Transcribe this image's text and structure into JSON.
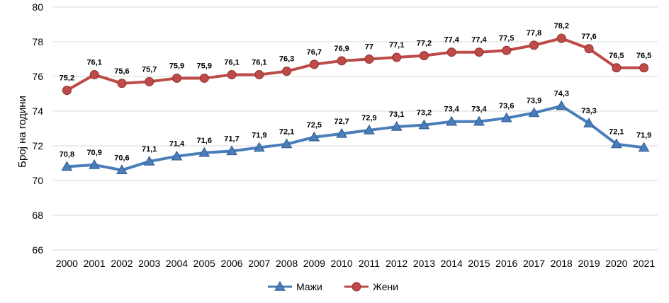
{
  "chart_data": {
    "type": "line",
    "title": "",
    "xlabel": "",
    "ylabel": "Број на години",
    "ylim": [
      66,
      80
    ],
    "yticks": [
      66,
      68,
      70,
      72,
      74,
      76,
      78,
      80
    ],
    "grid": true,
    "legend_position": "bottom",
    "categories": [
      "2000",
      "2001",
      "2002",
      "2003",
      "2004",
      "2005",
      "2006",
      "2007",
      "2008",
      "2009",
      "2010",
      "2011",
      "2012",
      "2013",
      "2014",
      "2015",
      "2016",
      "2017",
      "2018",
      "2019",
      "2020",
      "2021"
    ],
    "series": [
      {
        "name": "Мажи",
        "color": "#4a7ebb",
        "marker": "triangle",
        "values": [
          70.8,
          70.9,
          70.6,
          71.1,
          71.4,
          71.6,
          71.7,
          71.9,
          72.1,
          72.5,
          72.7,
          72.9,
          73.1,
          73.2,
          73.4,
          73.4,
          73.6,
          73.9,
          74.3,
          73.3,
          72.1,
          71.9
        ],
        "labels": [
          "70,8",
          "70,9",
          "70,6",
          "71,1",
          "71,4",
          "71,6",
          "71,7",
          "71,9",
          "72,1",
          "72,5",
          "72,7",
          "72,9",
          "73,1",
          "73,2",
          "73,4",
          "73,4",
          "73,6",
          "73,9",
          "74,3",
          "73,3",
          "72,1",
          "71,9"
        ]
      },
      {
        "name": "Жени",
        "color": "#be4b48",
        "marker": "circle",
        "values": [
          75.2,
          76.1,
          75.6,
          75.7,
          75.9,
          75.9,
          76.1,
          76.1,
          76.3,
          76.7,
          76.9,
          77.0,
          77.1,
          77.2,
          77.4,
          77.4,
          77.5,
          77.8,
          78.2,
          77.6,
          76.5,
          76.5
        ],
        "labels": [
          "75,2",
          "76,1",
          "75,6",
          "75,7",
          "75,9",
          "75,9",
          "76,1",
          "76,1",
          "76,3",
          "76,7",
          "76,9",
          "77",
          "77,1",
          "77,2",
          "77,4",
          "77,4",
          "77,5",
          "77,8",
          "78,2",
          "77,6",
          "76,5",
          "76,5"
        ]
      }
    ]
  }
}
